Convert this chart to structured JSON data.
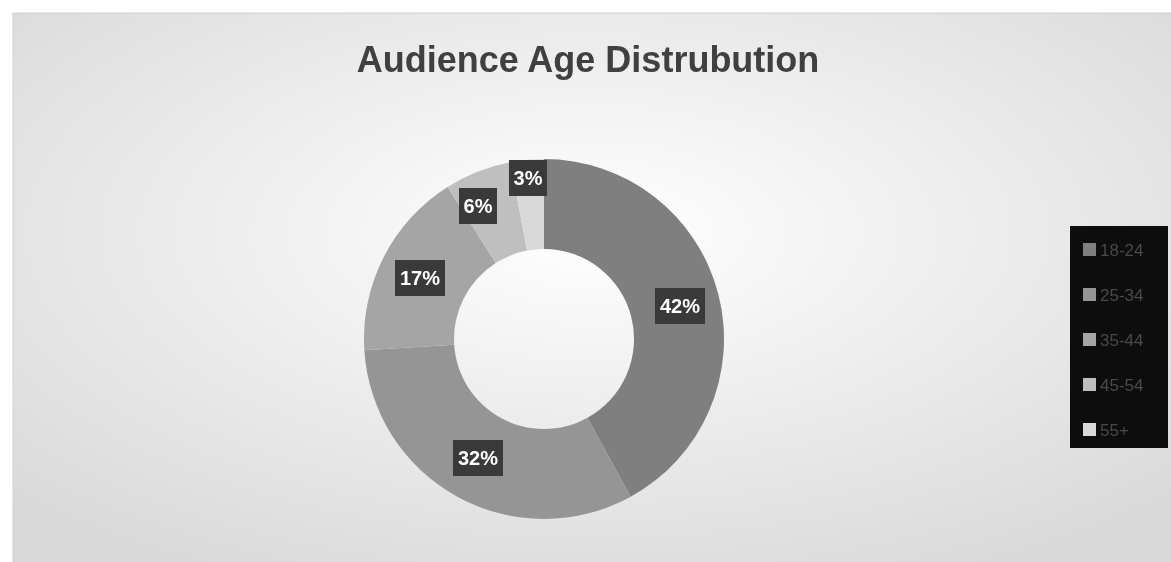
{
  "chart_data": {
    "type": "donut",
    "title": "Audience Age Distrubution",
    "categories": [
      "18-24",
      "25-34",
      "35-44",
      "45-54",
      "55+"
    ],
    "values": [
      42,
      32,
      17,
      6,
      3
    ],
    "value_labels": [
      "42%",
      "32%",
      "17%",
      "6%",
      "3%"
    ],
    "colors": [
      "#7f7f7f",
      "#959595",
      "#a5a5a5",
      "#bfbfbf",
      "#d9d9d9"
    ],
    "legend": "right"
  }
}
